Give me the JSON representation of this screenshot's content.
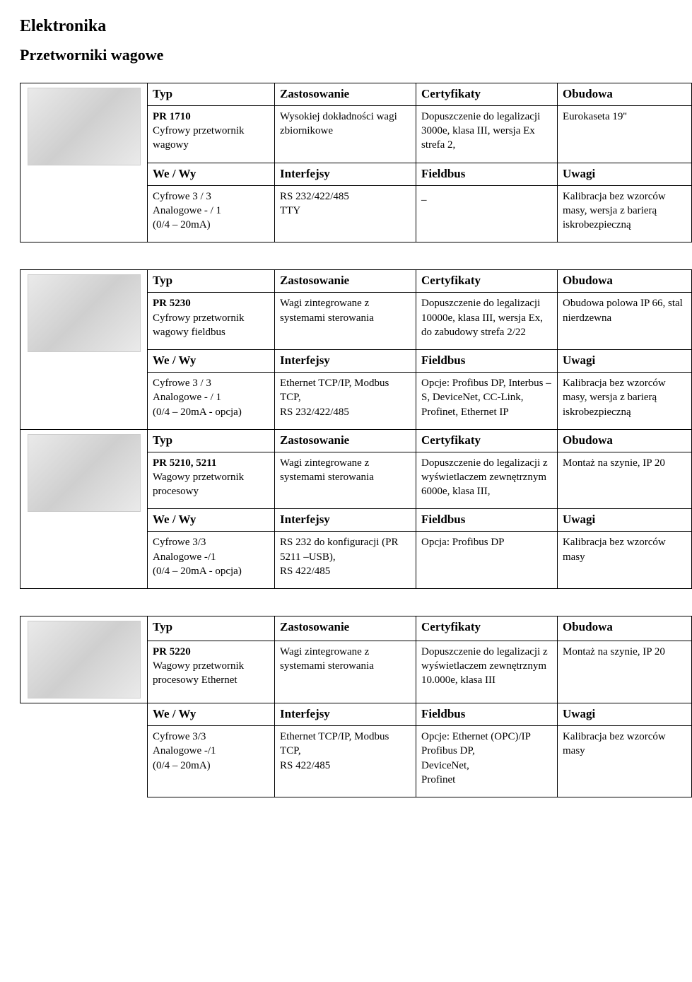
{
  "page": {
    "title": "Elektronika",
    "subtitle": "Przetworniki wagowe"
  },
  "headers": {
    "typ": "Typ",
    "zast": "Zastosowanie",
    "cert": "Certyfikaty",
    "obud": "Obudowa",
    "wewy": "We / Wy",
    "intf": "Interfejsy",
    "fb": "Fieldbus",
    "uw": "Uwagi"
  },
  "products": [
    {
      "row1": {
        "typ": "PR 1710\nCyfrowy przetwornik wagowy",
        "zast": "Wysokiej dokładności wagi zbiornikowe",
        "cert": "Dopuszczenie do legalizacji 3000e, klasa III, wersja Ex strefa 2,",
        "obud": "Eurokaseta 19''"
      },
      "row2": {
        "wewy": "Cyfrowe 3 / 3\nAnalogowe - / 1\n (0/4 – 20mA)",
        "intf": "RS 232/422/485\nTTY",
        "fb": "_",
        "uw": "Kalibracja bez wzorców masy, wersja z barierą iskrobezpieczną"
      }
    },
    {
      "row1": {
        "typ": "PR 5230\nCyfrowy przetwornik wagowy fieldbus",
        "zast": "Wagi zintegrowane z systemami sterowania",
        "cert": "Dopuszczenie do legalizacji 10000e, klasa III, wersja Ex, do zabudowy strefa 2/22",
        "obud": "Obudowa polowa IP 66, stal nierdzewna"
      },
      "row2": {
        "wewy": "Cyfrowe 3 / 3\nAnalogowe - / 1\n (0/4 – 20mA - opcja)",
        "intf": "Ethernet TCP/IP, Modbus TCP,\nRS 232/422/485",
        "fb": "Opcje: Profibus DP, Interbus – S, DeviceNet, CC-Link, Profinet, Ethernet IP",
        "uw": "Kalibracja bez wzorców masy, wersja z barierą iskrobezpieczną"
      },
      "row3": {
        "typ": "PR 5210, 5211\nWagowy przetwornik procesowy",
        "zast": "Wagi zintegrowane z systemami sterowania",
        "cert": "Dopuszczenie do legalizacji z wyświetlaczem zewnętrznym 6000e, klasa III,",
        "obud": "Montaż na szynie, IP 20"
      },
      "row4": {
        "wewy": "Cyfrowe 3/3\nAnalogowe -/1\n (0/4 – 20mA - opcja)",
        "intf": "RS 232 do konfiguracji (PR 5211 –USB),\nRS 422/485",
        "fb": "Opcja: Profibus DP",
        "uw": "Kalibracja bez wzorców masy"
      }
    },
    {
      "row1": {
        "typ": "PR 5220\nWagowy przetwornik procesowy Ethernet",
        "zast": "Wagi zintegrowane z systemami sterowania",
        "cert": "Dopuszczenie do legalizacji z wyświetlaczem zewnętrznym 10.000e, klasa III",
        "obud": "Montaż na szynie, IP 20"
      },
      "row2": {
        "wewy": "Cyfrowe 3/3\nAnalogowe -/1\n (0/4 – 20mA)",
        "intf": "Ethernet TCP/IP, Modbus TCP,\nRS 422/485",
        "fb": "Opcje: Ethernet (OPC)/IP\nProfibus DP,\nDeviceNet,\nProfinet",
        "uw": "Kalibracja bez wzorców masy"
      }
    }
  ]
}
